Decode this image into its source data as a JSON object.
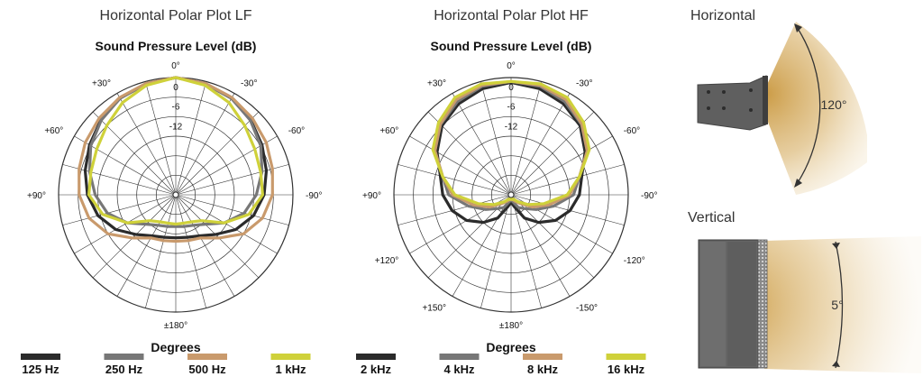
{
  "colors": {
    "black": "#2b2b2b",
    "gray": "#777777",
    "tan": "#c99a6c",
    "yellow": "#cfd13a",
    "grid": "#333333",
    "beam": "#d8b370",
    "device": "#5f5f5f"
  },
  "chart_data": [
    {
      "type": "polar",
      "title": "Horizontal Polar Plot LF",
      "subtitle": "Sound Pressure Level (dB)",
      "xlabel": "Degrees",
      "radial_ticks": [
        "0",
        "-6",
        "-12"
      ],
      "radial_range_db": [
        -24,
        0
      ],
      "angle_labels": [
        "0°",
        "-30°",
        "-60°",
        "-90°",
        "±180°",
        "+90°",
        "+60°",
        "+30°"
      ],
      "series": [
        {
          "name": "125 Hz",
          "color": "#2b2b2b",
          "angles": [
            0,
            15,
            30,
            45,
            60,
            75,
            90,
            105,
            120,
            135,
            150,
            165,
            180
          ],
          "values": [
            0,
            -0.5,
            -1.2,
            -2.3,
            -3.6,
            -4.8,
            -5.9,
            -7.5,
            -9.8,
            -12.5,
            -14.3,
            -15.0,
            -15.2
          ]
        },
        {
          "name": "250 Hz",
          "color": "#777777",
          "angles": [
            0,
            15,
            30,
            45,
            60,
            75,
            90,
            105,
            120,
            135,
            150,
            165,
            180
          ],
          "values": [
            0,
            -0.5,
            -1.2,
            -2.4,
            -3.9,
            -5.7,
            -7.5,
            -9.5,
            -12.5,
            -15.5,
            -16.8,
            -17.3,
            -17.5
          ]
        },
        {
          "name": "500 Hz",
          "color": "#c99a6c",
          "angles": [
            0,
            15,
            30,
            45,
            60,
            75,
            90,
            105,
            120,
            135,
            150,
            165,
            180
          ],
          "values": [
            0,
            -0.4,
            -1.0,
            -1.8,
            -2.6,
            -3.5,
            -4.2,
            -5.6,
            -8.0,
            -11.5,
            -13.8,
            -14.3,
            -14.5
          ]
        },
        {
          "name": "1 kHz",
          "color": "#cfd13a",
          "angles": [
            0,
            15,
            30,
            45,
            60,
            75,
            90,
            105,
            120,
            135,
            150,
            165,
            180
          ],
          "values": [
            0,
            -0.8,
            -2.2,
            -4.0,
            -5.3,
            -6.0,
            -6.2,
            -8.5,
            -12.5,
            -16.5,
            -17.6,
            -18.0,
            -18.0
          ]
        }
      ]
    },
    {
      "type": "polar",
      "title": "Horizontal Polar Plot HF",
      "subtitle": "Sound Pressure Level (dB)",
      "xlabel": "Degrees",
      "radial_ticks": [
        "0",
        "-6",
        "-12"
      ],
      "radial_range_db": [
        -24,
        0
      ],
      "angle_labels": [
        "0°",
        "-30°",
        "-60°",
        "-90°",
        "-120°",
        "-150°",
        "±180°",
        "+150°",
        "+120°",
        "+90°",
        "+60°",
        "+30°"
      ],
      "series": [
        {
          "name": "2 kHz",
          "color": "#2b2b2b",
          "angles": [
            0,
            15,
            30,
            45,
            60,
            75,
            90,
            105,
            120,
            135,
            150,
            165,
            180
          ],
          "values": [
            -1,
            -1.5,
            -2.5,
            -4.0,
            -6.5,
            -9.0,
            -10.0,
            -11.5,
            -13.5,
            -16.0,
            -18.5,
            -21.5,
            -22.5
          ]
        },
        {
          "name": "4 kHz",
          "color": "#777777",
          "angles": [
            0,
            15,
            30,
            45,
            60,
            75,
            90,
            105,
            120,
            135,
            150,
            165,
            180
          ],
          "values": [
            -0.8,
            -1.0,
            -2.0,
            -3.6,
            -6.0,
            -9.5,
            -11.2,
            -15.0,
            -18.0,
            -20.0,
            -21.0,
            -22.5,
            -23.0
          ]
        },
        {
          "name": "8 kHz",
          "color": "#c99a6c",
          "angles": [
            0,
            15,
            30,
            45,
            60,
            75,
            90,
            105,
            120,
            135,
            150,
            165,
            180
          ],
          "values": [
            -0.8,
            -0.8,
            -1.5,
            -3.5,
            -6.0,
            -9.5,
            -12.0,
            -16.0,
            -19.0,
            -21.5,
            -22.5,
            -23.0,
            -23.0
          ]
        },
        {
          "name": "16 kHz",
          "color": "#cfd13a",
          "angles": [
            0,
            15,
            30,
            45,
            60,
            75,
            90,
            105,
            120,
            135,
            150,
            165,
            180
          ],
          "values": [
            -0.8,
            -0.5,
            -1.0,
            -3.0,
            -5.5,
            -9.5,
            -12.5,
            -17.0,
            -20.0,
            -22.0,
            -23.0,
            -23.0,
            -23.5
          ]
        }
      ]
    }
  ],
  "illustration": {
    "horizontal": {
      "title": "Horizontal",
      "angle": "120°"
    },
    "vertical": {
      "title": "Vertical",
      "angle": "5°"
    }
  }
}
